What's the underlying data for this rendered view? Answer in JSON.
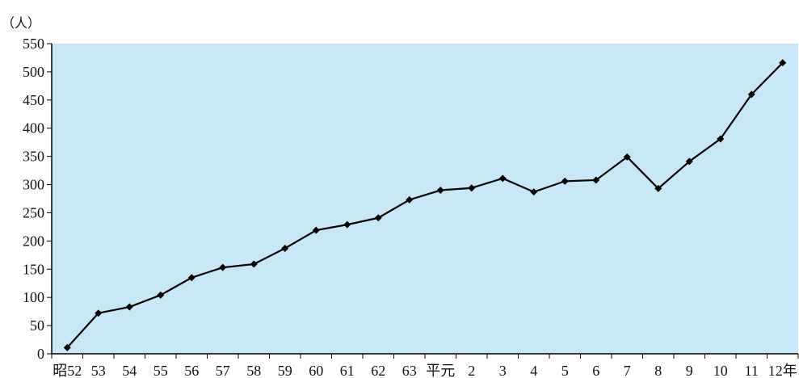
{
  "chart_data": {
    "type": "line",
    "title": "",
    "xlabel": "",
    "ylabel": "（人）",
    "ylim": [
      0,
      550
    ],
    "yticks": [
      0,
      50,
      100,
      150,
      200,
      250,
      300,
      350,
      400,
      450,
      500,
      550
    ],
    "categories": [
      "昭52",
      "53",
      "54",
      "55",
      "56",
      "57",
      "58",
      "59",
      "60",
      "61",
      "62",
      "63",
      "平元",
      "2",
      "3",
      "4",
      "5",
      "6",
      "7",
      "8",
      "9",
      "10",
      "11",
      "12年"
    ],
    "series": [
      {
        "values": [
          11,
          72,
          83,
          104,
          135,
          153,
          159,
          187,
          219,
          229,
          241,
          273,
          290,
          294,
          311,
          287,
          306,
          308,
          349,
          293,
          341,
          381,
          460,
          516
        ]
      }
    ],
    "grid": false,
    "legend": "none",
    "colors": {
      "plot_background": "#c8e8f8",
      "line": "#000000",
      "axis": "#000000"
    }
  }
}
